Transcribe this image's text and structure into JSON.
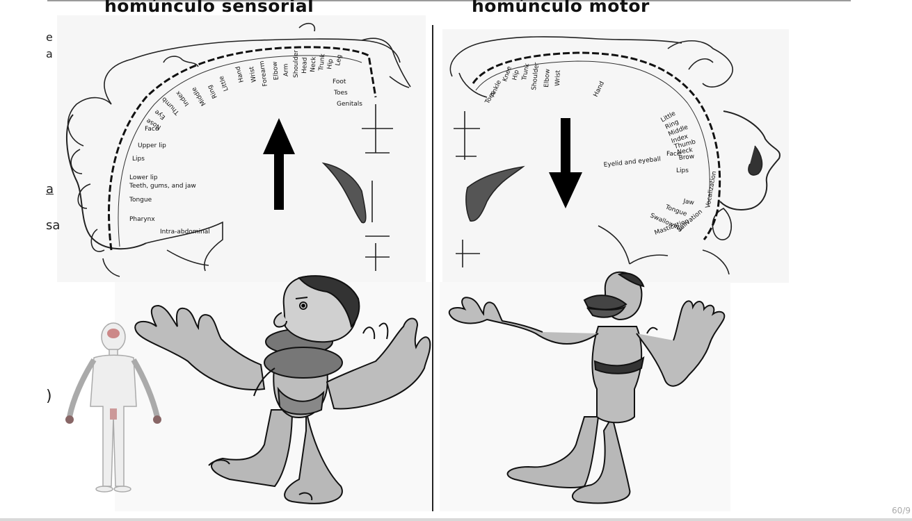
{
  "titles": {
    "sensory": "homúnculo sensorial",
    "motor": "homúnculo motor"
  },
  "sensory_labels": [
    "Genitals",
    "Toes",
    "Foot",
    "Leg",
    "Hip",
    "Trunk",
    "Neck",
    "Head",
    "Shoulder",
    "Arm",
    "Elbow",
    "Forearm",
    "Wrist",
    "Hand",
    "Little",
    "Ring",
    "Middle",
    "Index",
    "Thumb",
    "Eye",
    "Nose",
    "Face",
    "Upper lip",
    "Lips",
    "Lower lip",
    "Teeth, gums, and jaw",
    "Tongue",
    "Pharynx",
    "Intra-abdominal"
  ],
  "motor_labels": [
    "Toes",
    "Ankle",
    "Knee",
    "Hip",
    "Trunk",
    "Shoulder",
    "Elbow",
    "Wrist",
    "Hand",
    "Little",
    "Ring",
    "Middle",
    "Index",
    "Thumb",
    "Neck",
    "Brow",
    "Eyelid and eyeball",
    "Face",
    "Lips",
    "Jaw",
    "Tongue",
    "Swallowing",
    "Mastication",
    "Salivation",
    "Vocalization"
  ],
  "margin_fragments": [
    "e",
    "a",
    "a",
    "sa",
    ")"
  ],
  "arrows": {
    "sensory": "up",
    "motor": "down"
  },
  "page_number": "60/9"
}
